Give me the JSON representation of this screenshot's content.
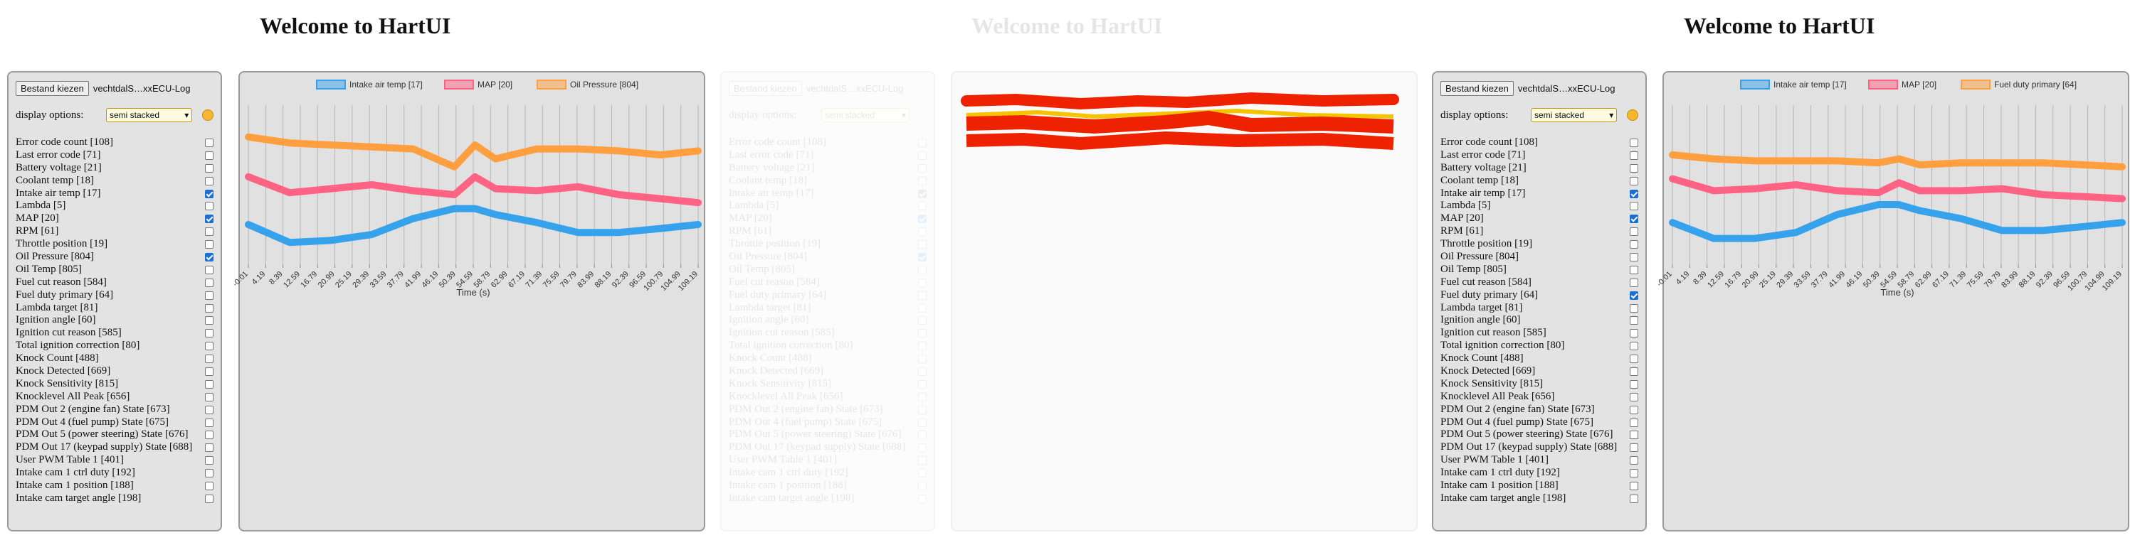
{
  "app": {
    "title": "Welcome to HartUI"
  },
  "file": {
    "button_label": "Bestand kiezen",
    "file_name": "vechtdalS…xxECU-Log"
  },
  "display": {
    "label": "display options:",
    "selected": "semi stacked"
  },
  "parameters": [
    "Error code count [108]",
    "Last error code [71]",
    "Battery voltage [21]",
    "Coolant temp [18]",
    "Intake air temp [17]",
    "Lambda [5]",
    "MAP [20]",
    "RPM [61]",
    "Throttle position [19]",
    "Oil Pressure [804]",
    "Oil Temp [805]",
    "Fuel cut reason [584]",
    "Fuel duty primary [64]",
    "Lambda target [81]",
    "Ignition angle [60]",
    "Ignition cut reason [585]",
    "Total ignition correction [80]",
    "Knock Count [488]",
    "Knock Detected [669]",
    "Knock Sensitivity [815]",
    "Knocklevel All Peak [656]",
    "PDM Out 2 (engine fan) State [673]",
    "PDM Out 4 (fuel pump) State [675]",
    "PDM Out 5 (power steering) State [676]",
    "PDM Out 17 (keypad supply) State [688]",
    "User PWM Table 1 [401]",
    "Intake cam 1 ctrl duty [192]",
    "Intake cam 1 position [188]",
    "Intake cam target angle [198]"
  ],
  "panels": [
    {
      "checked": [
        4,
        6,
        9
      ]
    },
    {
      "checked": [
        4,
        6,
        12
      ]
    }
  ],
  "charts": [
    {
      "legend": [
        "Intake air temp [17]",
        "MAP [20]",
        "Oil Pressure [804]"
      ],
      "xlabel": "Time (s)",
      "ticks": [
        "-0.01",
        "4.19",
        "8.39",
        "12.59",
        "16.79",
        "20.99",
        "25.19",
        "29.39",
        "33.59",
        "37.79",
        "41.99",
        "46.19",
        "50.39",
        "54.59",
        "58.79",
        "62.99",
        "67.19",
        "71.39",
        "75.59",
        "79.79",
        "83.99",
        "88.19",
        "92.39",
        "96.59",
        "100.79",
        "104.99",
        "109.19"
      ]
    },
    {
      "legend": [
        "Intake air temp [17]",
        "MAP [20]",
        "Fuel duty primary [64]"
      ],
      "xlabel": "Time (s)",
      "ticks": [
        "-0.01",
        "4.19",
        "8.39",
        "12.59",
        "16.79",
        "20.99",
        "25.19",
        "29.39",
        "33.59",
        "37.79",
        "41.99",
        "46.19",
        "50.39",
        "54.59",
        "58.79",
        "62.99",
        "67.19",
        "71.39",
        "75.59",
        "79.79",
        "83.99",
        "88.19",
        "92.39",
        "96.59",
        "100.79",
        "104.99",
        "109.19"
      ]
    }
  ],
  "colors": {
    "blue": "#36a2eb",
    "pink": "#ff6384",
    "orange": "#ff9f40",
    "ghost_red": "#ee2200",
    "ghost_yellow": "#f5c400"
  },
  "chart_data": [
    {
      "type": "line",
      "x": [
        -0.01,
        10,
        20,
        30,
        40,
        50,
        55,
        60,
        70,
        80,
        90,
        100,
        109.19
      ],
      "series": [
        {
          "name": "Intake air temp [17]",
          "values": [
            20,
            11,
            12,
            15,
            23,
            28,
            28,
            25,
            21,
            16,
            16,
            18,
            20
          ]
        },
        {
          "name": "MAP [20]",
          "values": [
            44,
            36,
            38,
            40,
            37,
            35,
            44,
            38,
            37,
            39,
            35,
            33,
            31
          ]
        },
        {
          "name": "Oil Pressure [804]",
          "values": [
            64,
            61,
            60,
            59,
            58,
            49,
            60,
            53,
            58,
            58,
            57,
            55,
            57
          ]
        }
      ]
    },
    {
      "type": "line",
      "x": [
        -0.01,
        10,
        20,
        30,
        40,
        50,
        55,
        60,
        70,
        80,
        90,
        100,
        109.19
      ],
      "series": [
        {
          "name": "Intake air temp [17]",
          "values": [
            21,
            13,
            13,
            16,
            25,
            30,
            30,
            27,
            23,
            17,
            17,
            19,
            21
          ]
        },
        {
          "name": "MAP [20]",
          "values": [
            43,
            37,
            38,
            40,
            37,
            36,
            41,
            37,
            37,
            38,
            35,
            34,
            33
          ]
        },
        {
          "name": "Fuel duty primary [64]",
          "values": [
            55,
            53,
            52,
            52,
            52,
            51,
            53,
            50,
            51,
            51,
            51,
            50,
            49
          ]
        }
      ]
    }
  ]
}
